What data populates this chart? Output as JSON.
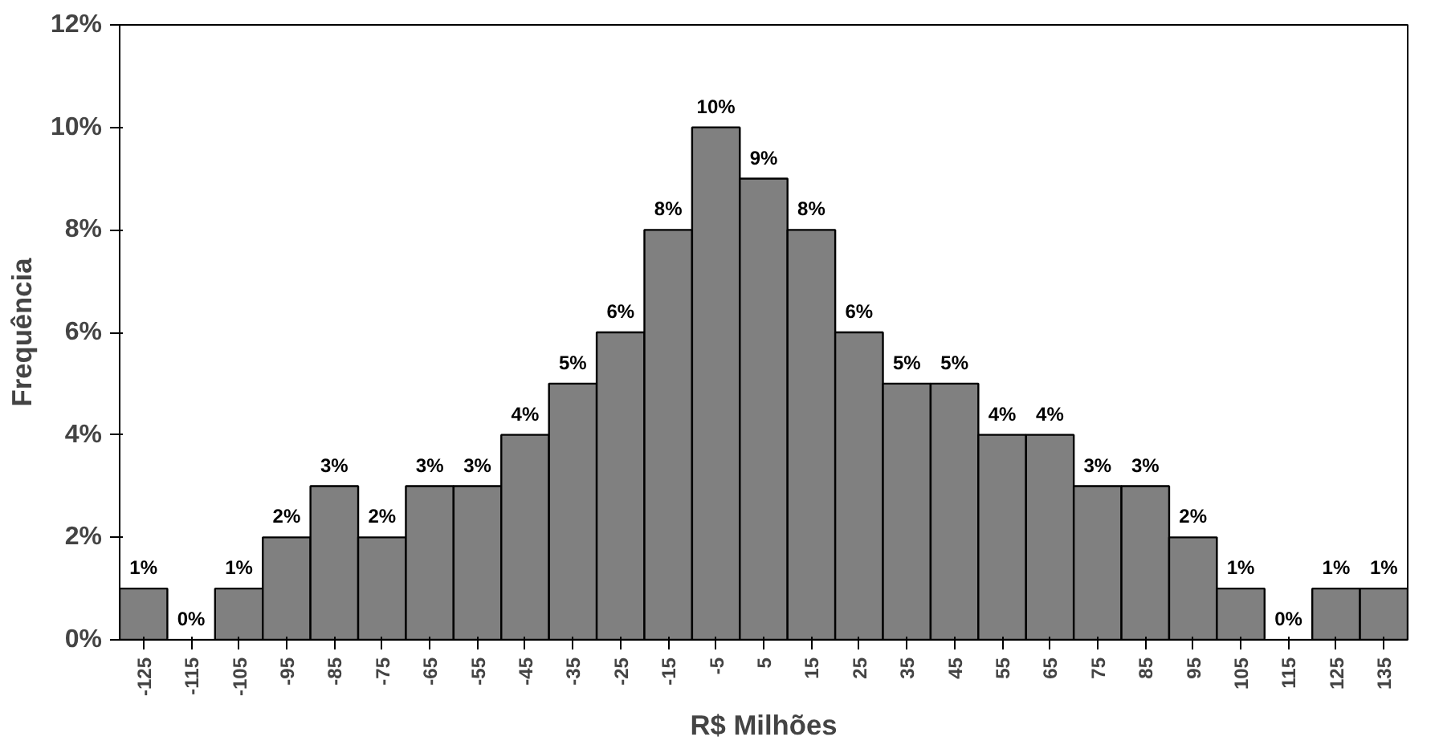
{
  "chart_data": {
    "type": "bar",
    "xlabel": "R$ Milhões",
    "ylabel": "Frequência",
    "categories": [
      "-125",
      "-115",
      "-105",
      "-95",
      "-85",
      "-75",
      "-65",
      "-55",
      "-45",
      "-35",
      "-25",
      "-15",
      "-5",
      "5",
      "15",
      "25",
      "35",
      "45",
      "55",
      "65",
      "75",
      "85",
      "95",
      "105",
      "115",
      "125",
      "135"
    ],
    "values": [
      1,
      0,
      1,
      2,
      3,
      2,
      3,
      3,
      4,
      5,
      6,
      8,
      10,
      9,
      8,
      6,
      5,
      5,
      4,
      4,
      3,
      3,
      2,
      1,
      0,
      1,
      1
    ],
    "value_labels": [
      "1%",
      "0%",
      "1%",
      "2%",
      "3%",
      "2%",
      "3%",
      "3%",
      "4%",
      "5%",
      "6%",
      "8%",
      "10%",
      "9%",
      "8%",
      "6%",
      "5%",
      "5%",
      "4%",
      "4%",
      "3%",
      "3%",
      "2%",
      "1%",
      "0%",
      "1%",
      "1%"
    ],
    "color": "#808080",
    "ylim": [
      0,
      12
    ],
    "yticks": [
      {
        "value": 0,
        "label": "0%"
      },
      {
        "value": 2,
        "label": "2%"
      },
      {
        "value": 4,
        "label": "4%"
      },
      {
        "value": 6,
        "label": "6%"
      },
      {
        "value": 8,
        "label": "8%"
      },
      {
        "value": 10,
        "label": "10%"
      },
      {
        "value": 12,
        "label": "12%"
      }
    ],
    "grid": false
  }
}
